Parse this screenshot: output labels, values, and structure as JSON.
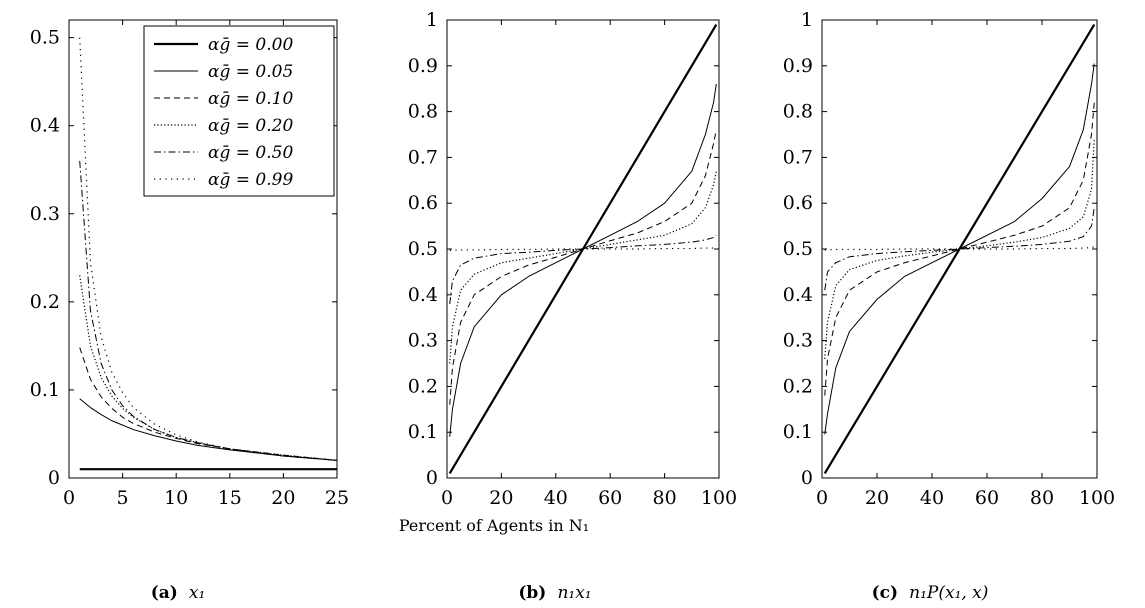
{
  "figure": {
    "captions": [
      {
        "letter": "(a)",
        "math": "x₁"
      },
      {
        "letter": "(b)",
        "math": "n₁x₁"
      },
      {
        "letter": "(c)",
        "math": "n₁P(x₁, x)"
      }
    ]
  },
  "legend_labels": [
    "αḡ = 0.00",
    "αḡ = 0.05",
    "αḡ = 0.10",
    "αḡ = 0.20",
    "αḡ = 0.50",
    "αḡ = 0.99"
  ],
  "chart_data": [
    {
      "type": "line",
      "caption": "(a) x₁",
      "xlabel": "",
      "ylabel": "",
      "xlim": [
        0,
        25
      ],
      "ylim": [
        0,
        0.52
      ],
      "xticks": [
        "0",
        "5",
        "10",
        "15",
        "20",
        "25"
      ],
      "yticks": [
        "0",
        "0.1",
        "0.2",
        "0.3",
        "0.4",
        "0.5"
      ],
      "legend": "top-right",
      "x": [
        1,
        2,
        3,
        4,
        5,
        6,
        8,
        10,
        12,
        15,
        20,
        25
      ],
      "series": [
        {
          "name": "αḡ = 0.00",
          "style": "solid-thick",
          "values": [
            0.01,
            0.01,
            0.01,
            0.01,
            0.01,
            0.01,
            0.01,
            0.01,
            0.01,
            0.01,
            0.01,
            0.01
          ]
        },
        {
          "name": "αḡ = 0.05",
          "style": "solid",
          "values": [
            0.09,
            0.08,
            0.072,
            0.065,
            0.06,
            0.055,
            0.048,
            0.042,
            0.037,
            0.032,
            0.025,
            0.02
          ]
        },
        {
          "name": "αḡ = 0.10",
          "style": "dashed",
          "values": [
            0.148,
            0.112,
            0.092,
            0.079,
            0.069,
            0.062,
            0.052,
            0.045,
            0.039,
            0.033,
            0.026,
            0.02
          ]
        },
        {
          "name": "αḡ = 0.20",
          "style": "dotted",
          "values": [
            0.23,
            0.15,
            0.114,
            0.093,
            0.079,
            0.069,
            0.055,
            0.046,
            0.04,
            0.033,
            0.026,
            0.02
          ]
        },
        {
          "name": "αḡ = 0.50",
          "style": "dashdot",
          "values": [
            0.36,
            0.19,
            0.13,
            0.1,
            0.082,
            0.07,
            0.055,
            0.046,
            0.04,
            0.033,
            0.025,
            0.02
          ]
        },
        {
          "name": "αḡ = 0.99",
          "style": "sparse-dotted",
          "values": [
            0.5,
            0.245,
            0.16,
            0.12,
            0.097,
            0.08,
            0.061,
            0.049,
            0.041,
            0.033,
            0.025,
            0.02
          ]
        }
      ]
    },
    {
      "type": "line",
      "caption": "(b) n₁x₁",
      "xlabel": "Percent of Agents in N₁",
      "ylabel": "",
      "xlim": [
        0,
        100
      ],
      "ylim": [
        0,
        1
      ],
      "xticks": [
        "0",
        "20",
        "40",
        "60",
        "80",
        "100"
      ],
      "yticks": [
        "0",
        "0.1",
        "0.2",
        "0.3",
        "0.4",
        "0.5",
        "0.6",
        "0.7",
        "0.8",
        "0.9",
        "1"
      ],
      "x": [
        1,
        2,
        5,
        10,
        20,
        30,
        40,
        50,
        60,
        70,
        80,
        90,
        95,
        98,
        99
      ],
      "series": [
        {
          "name": "αḡ = 0.00",
          "style": "solid-thick",
          "values": [
            0.01,
            0.02,
            0.05,
            0.1,
            0.2,
            0.3,
            0.4,
            0.5,
            0.6,
            0.7,
            0.8,
            0.9,
            0.95,
            0.98,
            0.99
          ]
        },
        {
          "name": "αḡ = 0.05",
          "style": "solid",
          "values": [
            0.09,
            0.15,
            0.25,
            0.33,
            0.4,
            0.44,
            0.47,
            0.5,
            0.53,
            0.56,
            0.6,
            0.67,
            0.75,
            0.82,
            0.86
          ]
        },
        {
          "name": "αḡ = 0.10",
          "style": "dashed",
          "values": [
            0.16,
            0.24,
            0.34,
            0.4,
            0.44,
            0.465,
            0.482,
            0.5,
            0.518,
            0.535,
            0.56,
            0.6,
            0.66,
            0.73,
            0.76
          ]
        },
        {
          "name": "αḡ = 0.20",
          "style": "dotted",
          "values": [
            0.25,
            0.33,
            0.41,
            0.445,
            0.47,
            0.48,
            0.49,
            0.5,
            0.51,
            0.52,
            0.53,
            0.555,
            0.59,
            0.64,
            0.67
          ]
        },
        {
          "name": "αḡ = 0.50",
          "style": "dashdot",
          "values": [
            0.38,
            0.43,
            0.465,
            0.48,
            0.49,
            0.493,
            0.497,
            0.5,
            0.503,
            0.507,
            0.51,
            0.515,
            0.52,
            0.525,
            0.53
          ]
        },
        {
          "name": "αḡ = 0.99",
          "style": "sparse-dotted",
          "values": [
            0.497,
            0.497,
            0.498,
            0.498,
            0.499,
            0.499,
            0.5,
            0.5,
            0.5,
            0.5,
            0.501,
            0.501,
            0.502,
            0.502,
            0.503
          ]
        }
      ]
    },
    {
      "type": "line",
      "caption": "(c) n₁P(x₁, x)",
      "xlabel": "",
      "ylabel": "",
      "xlim": [
        0,
        100
      ],
      "ylim": [
        0,
        1
      ],
      "xticks": [
        "0",
        "20",
        "40",
        "60",
        "80",
        "100"
      ],
      "yticks": [
        "0",
        "0.1",
        "0.2",
        "0.3",
        "0.4",
        "0.5",
        "0.6",
        "0.7",
        "0.8",
        "0.9",
        "1"
      ],
      "x": [
        1,
        2,
        5,
        10,
        20,
        30,
        40,
        50,
        60,
        70,
        80,
        90,
        95,
        98,
        99
      ],
      "series": [
        {
          "name": "αḡ = 0.00",
          "style": "solid-thick",
          "values": [
            0.01,
            0.02,
            0.05,
            0.1,
            0.2,
            0.3,
            0.4,
            0.5,
            0.6,
            0.7,
            0.8,
            0.9,
            0.95,
            0.98,
            0.99
          ]
        },
        {
          "name": "αḡ = 0.05",
          "style": "solid",
          "values": [
            0.095,
            0.14,
            0.24,
            0.32,
            0.39,
            0.44,
            0.47,
            0.5,
            0.53,
            0.56,
            0.61,
            0.68,
            0.76,
            0.86,
            0.905
          ]
        },
        {
          "name": "αḡ = 0.10",
          "style": "dashed",
          "values": [
            0.18,
            0.26,
            0.35,
            0.41,
            0.45,
            0.47,
            0.485,
            0.5,
            0.515,
            0.53,
            0.55,
            0.59,
            0.65,
            0.75,
            0.82
          ]
        },
        {
          "name": "αḡ = 0.20",
          "style": "dotted",
          "values": [
            0.26,
            0.34,
            0.42,
            0.455,
            0.475,
            0.485,
            0.493,
            0.5,
            0.507,
            0.515,
            0.525,
            0.545,
            0.57,
            0.63,
            0.74
          ]
        },
        {
          "name": "αḡ = 0.50",
          "style": "dashdot",
          "values": [
            0.41,
            0.45,
            0.47,
            0.483,
            0.49,
            0.494,
            0.497,
            0.5,
            0.503,
            0.506,
            0.51,
            0.517,
            0.527,
            0.55,
            0.59
          ]
        },
        {
          "name": "αḡ = 0.99",
          "style": "sparse-dotted",
          "values": [
            0.498,
            0.498,
            0.499,
            0.499,
            0.499,
            0.5,
            0.5,
            0.5,
            0.5,
            0.5,
            0.501,
            0.501,
            0.502,
            0.503,
            0.505
          ]
        }
      ]
    }
  ]
}
